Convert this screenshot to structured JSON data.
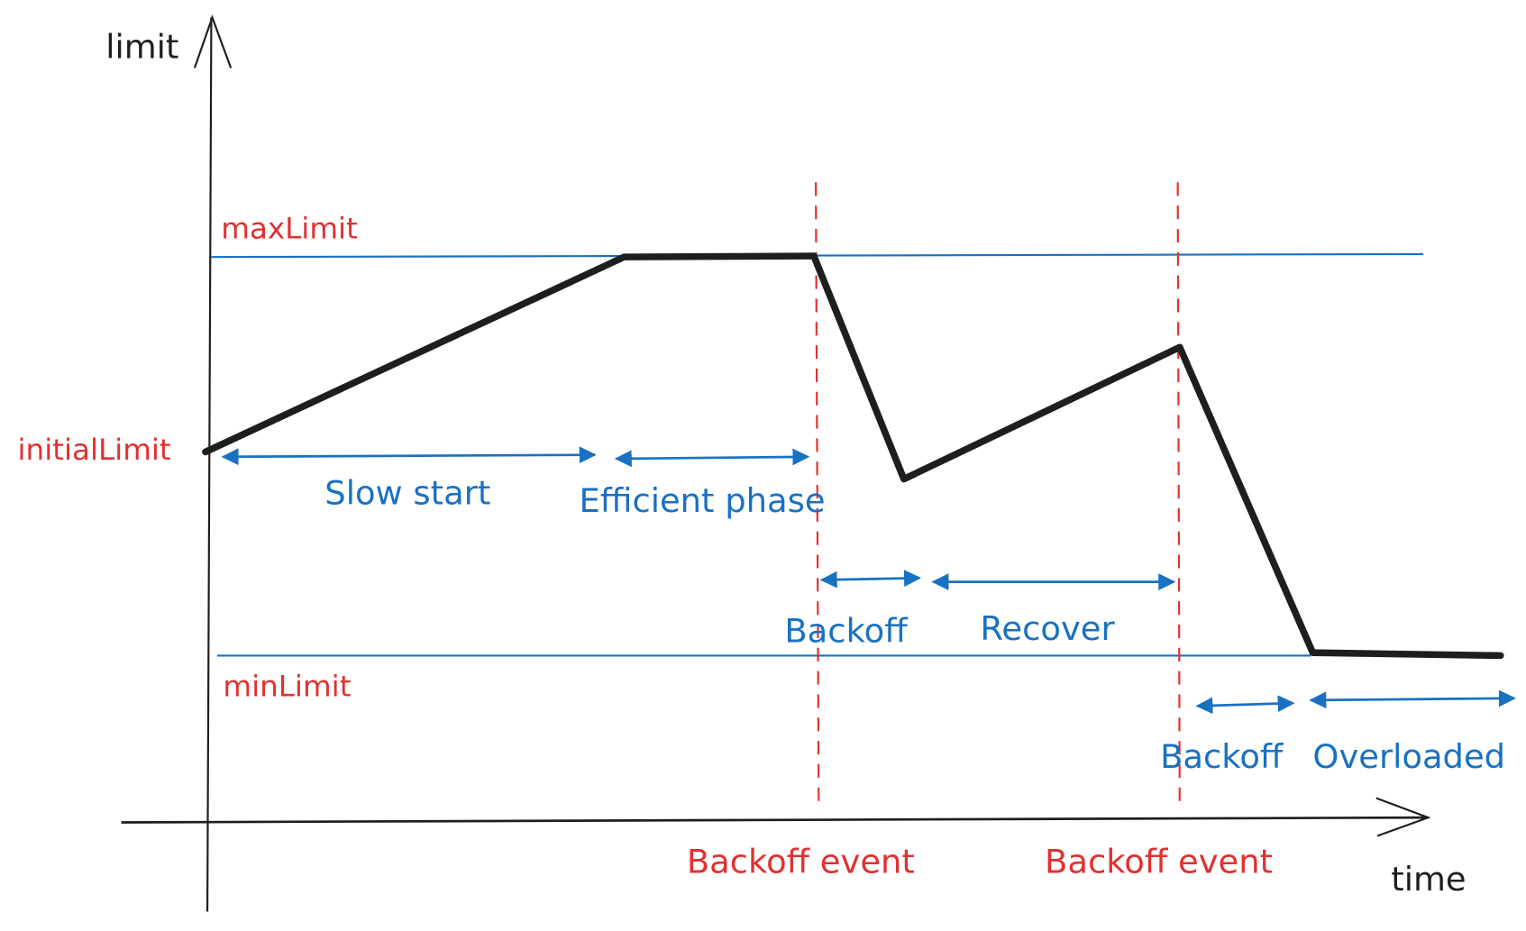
{
  "axes": {
    "y_label": "limit",
    "x_label": "time"
  },
  "levels": {
    "max": "maxLimit",
    "initial": "initialLimit",
    "min": "minLimit"
  },
  "phases": [
    {
      "label": "Slow start"
    },
    {
      "label": "Efficient phase"
    },
    {
      "label": "Backoff"
    },
    {
      "label": "Recover"
    },
    {
      "label": "Backoff"
    },
    {
      "label": "Overloaded"
    }
  ],
  "events": [
    {
      "label": "Backoff event"
    },
    {
      "label": "Backoff event"
    }
  ],
  "colors": {
    "curve": "#1e1e1e",
    "level_lines": "#1971c2",
    "phase_labels": "#1971c2",
    "level_labels": "#e03131",
    "event_lines": "#e03131"
  }
}
